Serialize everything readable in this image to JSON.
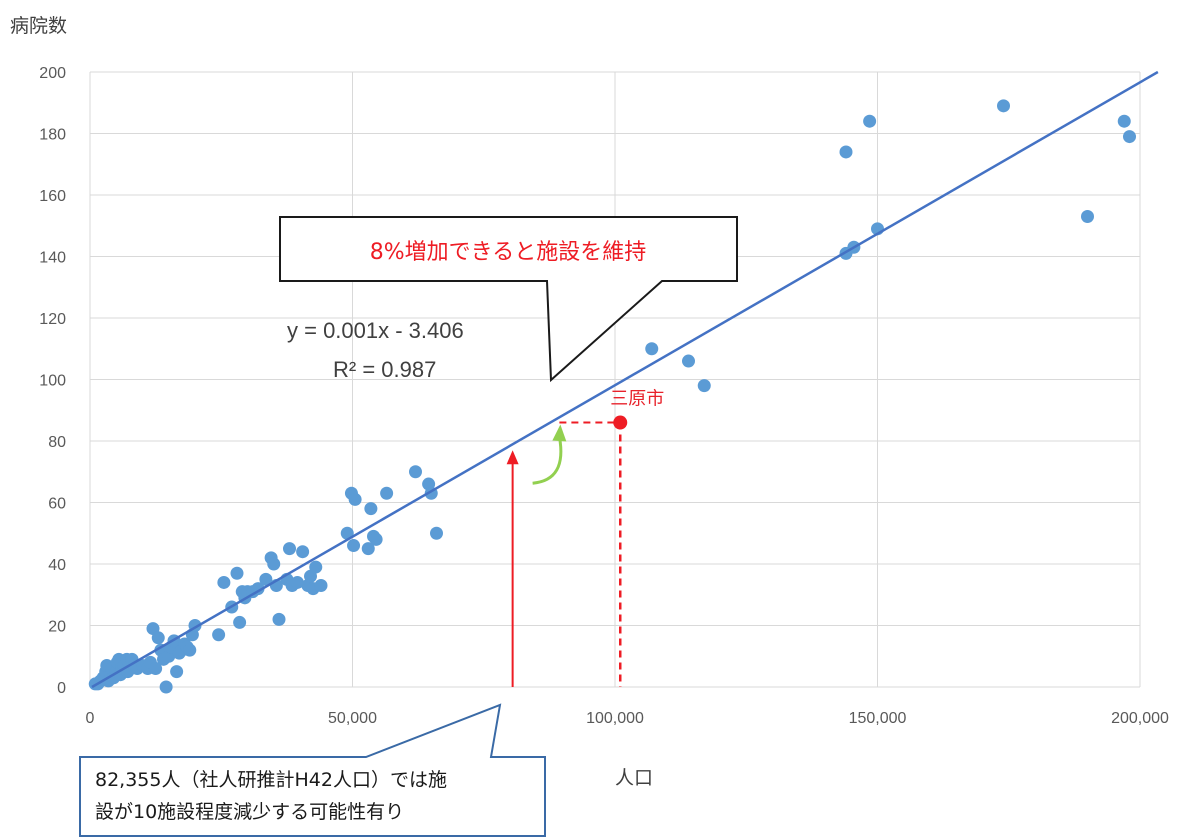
{
  "chart_data": {
    "type": "scatter",
    "ylabel": "病院数",
    "xlabel": "人口",
    "xlim": [
      0,
      200000
    ],
    "ylim": [
      0,
      200
    ],
    "xticks": [
      "0",
      "50,000",
      "100,000",
      "150,000",
      "200,000"
    ],
    "yticks": [
      "0",
      "20",
      "40",
      "60",
      "80",
      "100",
      "120",
      "140",
      "160",
      "180",
      "200"
    ],
    "grid": true,
    "colors": {
      "points": "#5b9bd5",
      "trendline": "#4472c4",
      "highlight": "#ee1c24",
      "arrow_green": "#92d050"
    },
    "trendline": {
      "equation": "y = 0.001x - 3.406",
      "r2_label": "R² = 0.987",
      "slope": 0.001,
      "intercept": -3.406
    },
    "points": [
      [
        1000,
        1
      ],
      [
        1500,
        1
      ],
      [
        2000,
        2
      ],
      [
        2500,
        3
      ],
      [
        3000,
        5
      ],
      [
        3200,
        7
      ],
      [
        3500,
        2
      ],
      [
        4000,
        4
      ],
      [
        4200,
        6
      ],
      [
        4500,
        3
      ],
      [
        5000,
        5
      ],
      [
        5200,
        8
      ],
      [
        5500,
        9
      ],
      [
        5800,
        4
      ],
      [
        6000,
        6
      ],
      [
        6500,
        7
      ],
      [
        7000,
        9
      ],
      [
        7200,
        5
      ],
      [
        7500,
        8
      ],
      [
        8000,
        9
      ],
      [
        8500,
        7
      ],
      [
        9000,
        6
      ],
      [
        10000,
        7
      ],
      [
        11000,
        6
      ],
      [
        11500,
        8
      ],
      [
        12000,
        19
      ],
      [
        12500,
        6
      ],
      [
        13000,
        16
      ],
      [
        13500,
        12
      ],
      [
        14000,
        9
      ],
      [
        14500,
        0
      ],
      [
        15000,
        10
      ],
      [
        15500,
        13
      ],
      [
        16000,
        15
      ],
      [
        16500,
        5
      ],
      [
        17000,
        11
      ],
      [
        17500,
        12
      ],
      [
        18000,
        14
      ],
      [
        18500,
        13
      ],
      [
        19000,
        12
      ],
      [
        19500,
        17
      ],
      [
        20000,
        20
      ],
      [
        24500,
        17
      ],
      [
        25500,
        34
      ],
      [
        27000,
        26
      ],
      [
        28000,
        37
      ],
      [
        28500,
        21
      ],
      [
        29000,
        31
      ],
      [
        29500,
        29
      ],
      [
        30000,
        31
      ],
      [
        31000,
        31
      ],
      [
        32000,
        32
      ],
      [
        33500,
        35
      ],
      [
        34500,
        42
      ],
      [
        35000,
        40
      ],
      [
        35500,
        33
      ],
      [
        36000,
        22
      ],
      [
        37500,
        35
      ],
      [
        38000,
        45
      ],
      [
        38500,
        33
      ],
      [
        39500,
        34
      ],
      [
        40500,
        44
      ],
      [
        41500,
        33
      ],
      [
        42000,
        36
      ],
      [
        42500,
        32
      ],
      [
        43000,
        39
      ],
      [
        44000,
        33
      ],
      [
        49000,
        50
      ],
      [
        49800,
        63
      ],
      [
        50200,
        46
      ],
      [
        50500,
        61
      ],
      [
        53000,
        45
      ],
      [
        53500,
        58
      ],
      [
        54000,
        49
      ],
      [
        54500,
        48
      ],
      [
        56500,
        63
      ],
      [
        62000,
        70
      ],
      [
        64500,
        66
      ],
      [
        65000,
        63
      ],
      [
        66000,
        50
      ],
      [
        107000,
        110
      ],
      [
        114000,
        106
      ],
      [
        117000,
        98
      ],
      [
        144000,
        141
      ],
      [
        144000,
        174
      ],
      [
        145500,
        143
      ],
      [
        148500,
        184
      ],
      [
        150000,
        149
      ],
      [
        174000,
        189
      ],
      [
        190000,
        153
      ],
      [
        197000,
        184
      ],
      [
        198000,
        179
      ]
    ],
    "highlight_point": {
      "label": "三原市",
      "x": 101000,
      "y": 86
    },
    "projection": {
      "x": 80500,
      "y": 77
    },
    "annotations": {
      "top": "8%増加できると施設を維持",
      "bottom_line1": "82,355人（社人研推計H42人口）では施",
      "bottom_line2": "設が10施設程度減少する可能性有り"
    }
  }
}
